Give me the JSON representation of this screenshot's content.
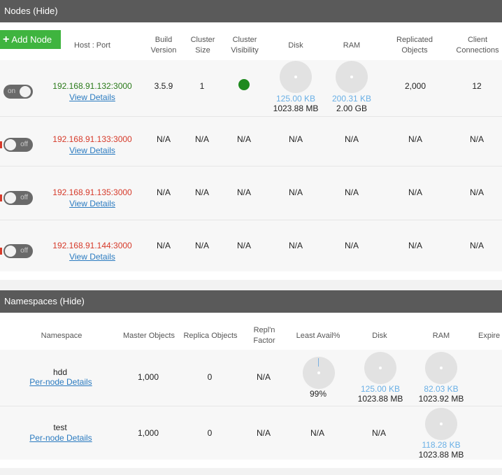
{
  "nodes_panel": {
    "title": "Nodes (Hide)",
    "add_button": "Add Node",
    "columns": [
      "Host : Port",
      "Build Version",
      "Cluster Size",
      "Cluster Visibility",
      "Disk",
      "RAM",
      "Replicated Objects",
      "Client Connections"
    ],
    "rows": [
      {
        "toggle": "on",
        "host": "192.168.91.132:3000",
        "link": "View Details",
        "build": "3.5.9",
        "cluster_size": "1",
        "visibility": "",
        "disk_used": "125.00 KB",
        "disk_total": "1023.88 MB",
        "ram_used": "200.31 KB",
        "ram_total": "2.00 GB",
        "replicated": "2,000",
        "connections": "12"
      },
      {
        "toggle": "off",
        "host": "192.168.91.133:3000",
        "link": "View Details",
        "build": "N/A",
        "cluster_size": "N/A",
        "visibility": "N/A",
        "disk": "N/A",
        "ram": "N/A",
        "replicated": "N/A",
        "connections": "N/A"
      },
      {
        "toggle": "off",
        "host": "192.168.91.135:3000",
        "link": "View Details",
        "build": "N/A",
        "cluster_size": "N/A",
        "visibility": "N/A",
        "disk": "N/A",
        "ram": "N/A",
        "replicated": "N/A",
        "connections": "N/A"
      },
      {
        "toggle": "off",
        "host": "192.168.91.144:3000",
        "link": "View Details",
        "build": "N/A",
        "cluster_size": "N/A",
        "visibility": "N/A",
        "disk": "N/A",
        "ram": "N/A",
        "replicated": "N/A",
        "connections": "N/A"
      }
    ]
  },
  "namespaces_panel": {
    "title": "Namespaces (Hide)",
    "columns": [
      "Namespace",
      "Master Objects",
      "Replica Objects",
      "Repl'n Factor",
      "Least Avail%",
      "Disk",
      "RAM",
      "Expire"
    ],
    "rows": [
      {
        "name": "hdd",
        "link": "Per-node Details",
        "master": "1,000",
        "replica": "0",
        "repl_factor": "N/A",
        "least_avail": "99%",
        "disk_used": "125.00 KB",
        "disk_total": "1023.88 MB",
        "ram_used": "82.03 KB",
        "ram_total": "1023.92 MB"
      },
      {
        "name": "test",
        "link": "Per-node Details",
        "master": "1,000",
        "replica": "0",
        "repl_factor": "N/A",
        "least_avail": "N/A",
        "disk": "N/A",
        "ram_used": "118.28 KB",
        "ram_total": "1023.88 MB"
      }
    ]
  },
  "colors": {
    "header": "#5a5a5a",
    "add_button": "#3fb43f",
    "online_host": "#2a7a1a",
    "offline_host": "#d63a2a",
    "link": "#2b7bc0",
    "usage": "#6ab0e6",
    "visible": "#1e8a1e"
  },
  "toggle_labels": {
    "on": "on",
    "off": "off"
  }
}
